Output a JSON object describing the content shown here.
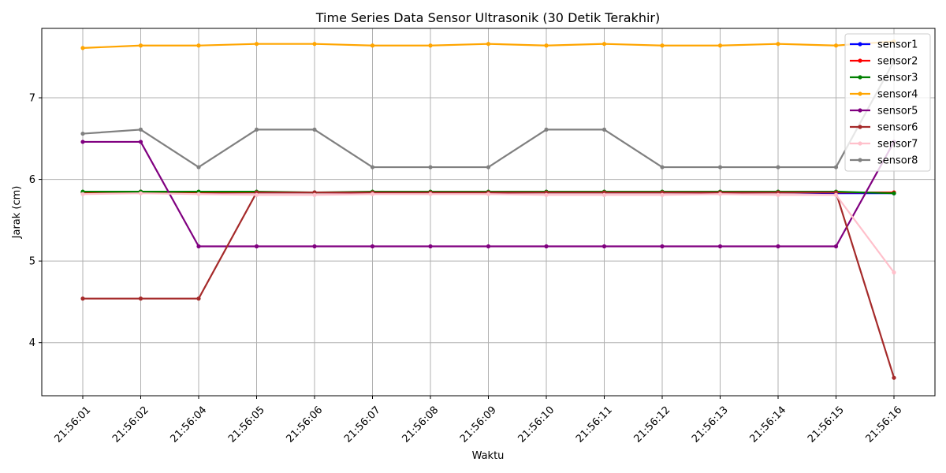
{
  "chart_data": {
    "type": "line",
    "title": "Time Series Data Sensor Ultrasonik (30 Detik Terakhir)",
    "xlabel": "Waktu",
    "ylabel": "Jarak (cm)",
    "categories": [
      "21:56:01",
      "21:56:02",
      "21:56:04",
      "21:56:05",
      "21:56:06",
      "21:56:07",
      "21:56:08",
      "21:56:09",
      "21:56:10",
      "21:56:11",
      "21:56:12",
      "21:56:13",
      "21:56:14",
      "21:56:15",
      "21:56:16"
    ],
    "ylim": [
      3.35,
      7.85
    ],
    "yticks": [
      4,
      5,
      6,
      7
    ],
    "grid": true,
    "legend_position": "top-right",
    "series": [
      {
        "name": "sensor1",
        "color": "#0000ff",
        "values": [
          5.84,
          5.85,
          5.84,
          5.84,
          5.84,
          5.84,
          5.84,
          5.84,
          5.84,
          5.84,
          5.84,
          5.84,
          5.84,
          5.83,
          5.83
        ]
      },
      {
        "name": "sensor2",
        "color": "#ff0000",
        "values": [
          5.84,
          5.85,
          5.84,
          5.84,
          5.84,
          5.84,
          5.84,
          5.84,
          5.84,
          5.84,
          5.84,
          5.84,
          5.84,
          5.84,
          5.84
        ]
      },
      {
        "name": "sensor3",
        "color": "#008000",
        "values": [
          5.85,
          5.85,
          5.85,
          5.85,
          5.84,
          5.85,
          5.85,
          5.85,
          5.85,
          5.85,
          5.85,
          5.85,
          5.85,
          5.85,
          5.83
        ]
      },
      {
        "name": "sensor4",
        "color": "#ffa500",
        "values": [
          7.61,
          7.64,
          7.64,
          7.66,
          7.66,
          7.64,
          7.64,
          7.66,
          7.64,
          7.66,
          7.64,
          7.64,
          7.66,
          7.64,
          7.69
        ]
      },
      {
        "name": "sensor5",
        "color": "#800080",
        "values": [
          6.46,
          6.46,
          5.18,
          5.18,
          5.18,
          5.18,
          5.18,
          5.18,
          5.18,
          5.18,
          5.18,
          5.18,
          5.18,
          5.18,
          6.46
        ]
      },
      {
        "name": "sensor6",
        "color": "#a52a2a",
        "values": [
          4.54,
          4.54,
          4.54,
          5.84,
          5.84,
          5.84,
          5.84,
          5.84,
          5.84,
          5.84,
          5.84,
          5.84,
          5.84,
          5.84,
          3.57
        ]
      },
      {
        "name": "sensor7",
        "color": "#ffc0cb",
        "values": [
          5.82,
          5.83,
          5.82,
          5.81,
          5.81,
          5.82,
          5.82,
          5.82,
          5.81,
          5.81,
          5.81,
          5.82,
          5.81,
          5.81,
          4.86
        ]
      },
      {
        "name": "sensor8",
        "color": "#808080",
        "values": [
          6.56,
          6.61,
          6.15,
          6.61,
          6.61,
          6.15,
          6.15,
          6.15,
          6.61,
          6.61,
          6.15,
          6.15,
          6.15,
          6.15,
          7.45
        ]
      }
    ]
  }
}
